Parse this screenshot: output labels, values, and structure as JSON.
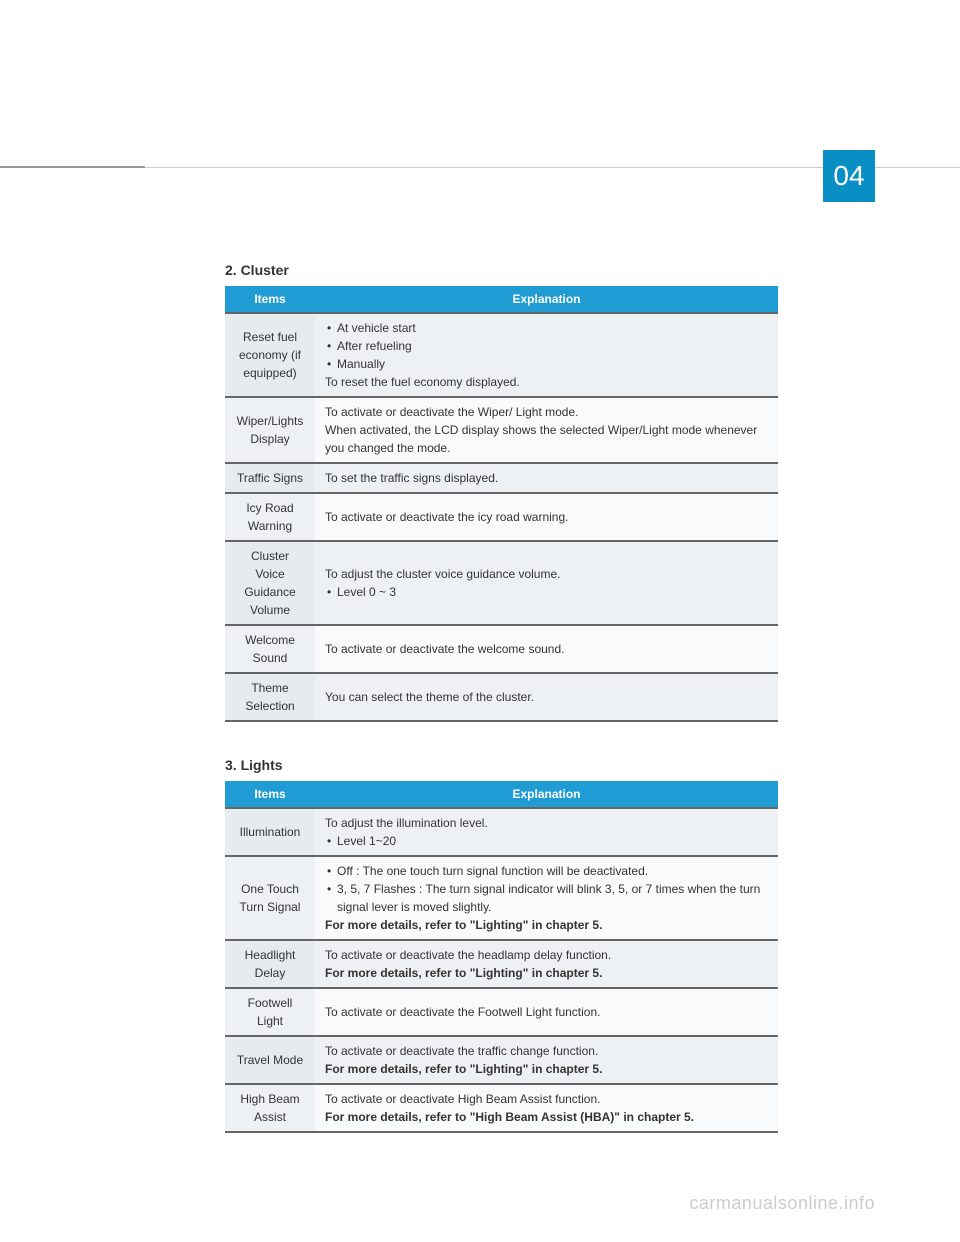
{
  "chapter_number": "04",
  "watermark": "carmanualsonline.info",
  "colors": {
    "header_bg": "#1f9cd4",
    "badge_bg": "#0a8fc5",
    "row_odd": "#edf1f4",
    "row_even": "#f8fafc",
    "item_cell": "#e5ebef",
    "border": "#666666"
  },
  "sections": [
    {
      "heading": "2. Cluster",
      "columns": [
        "Items",
        "Explanation"
      ],
      "rows": [
        {
          "item": "Reset fuel economy (if equipped)",
          "lines": [
            {
              "type": "bullet",
              "text": "At vehicle start"
            },
            {
              "type": "bullet",
              "text": "After refueling"
            },
            {
              "type": "bullet",
              "text": "Manually"
            },
            {
              "type": "plain",
              "text": "To reset the fuel economy displayed."
            }
          ]
        },
        {
          "item": "Wiper/Lights Display",
          "lines": [
            {
              "type": "plain",
              "text": "To activate or deactivate the Wiper/ Light mode."
            },
            {
              "type": "plain",
              "text": "When activated, the LCD display shows the selected Wiper/Light mode whenever you changed the mode."
            }
          ]
        },
        {
          "item": "Traffic Signs",
          "lines": [
            {
              "type": "plain",
              "text": "To set the traffic signs displayed."
            }
          ]
        },
        {
          "item": "Icy Road Warning",
          "lines": [
            {
              "type": "plain",
              "text": "To activate or deactivate the icy road warning."
            }
          ]
        },
        {
          "item": "Cluster Voice Guidance Volume",
          "lines": [
            {
              "type": "plain",
              "text": "To adjust the cluster voice guidance volume."
            },
            {
              "type": "bullet",
              "text": "Level 0 ~ 3"
            }
          ]
        },
        {
          "item": "Welcome Sound",
          "lines": [
            {
              "type": "plain",
              "text": "To activate or deactivate the welcome sound."
            }
          ]
        },
        {
          "item": "Theme Selection",
          "lines": [
            {
              "type": "plain",
              "text": "You can select the theme of the cluster."
            }
          ]
        }
      ]
    },
    {
      "heading": "3. Lights",
      "columns": [
        "Items",
        "Explanation"
      ],
      "rows": [
        {
          "item": "Illumination",
          "lines": [
            {
              "type": "plain",
              "text": "To adjust the illumination level."
            },
            {
              "type": "bullet",
              "text": "Level 1~20"
            }
          ]
        },
        {
          "item": "One Touch Turn Signal",
          "lines": [
            {
              "type": "bullet",
              "text": "Off : The one touch turn signal function will be deactivated."
            },
            {
              "type": "bullet",
              "text": "3, 5, 7 Flashes : The turn signal indicator will blink 3, 5, or 7 times when the turn signal lever is moved slightly."
            },
            {
              "type": "bold",
              "text": "For more details, refer to \"Lighting\" in chapter 5."
            }
          ]
        },
        {
          "item": "Headlight Delay",
          "lines": [
            {
              "type": "plain",
              "text": "To activate or deactivate the headlamp delay function."
            },
            {
              "type": "bold",
              "text": "For more details, refer to \"Lighting\" in chapter 5."
            }
          ]
        },
        {
          "item": "Footwell Light",
          "lines": [
            {
              "type": "plain",
              "text": "To activate or deactivate the Footwell Light function."
            }
          ]
        },
        {
          "item": "Travel Mode",
          "lines": [
            {
              "type": "plain",
              "text": "To activate or deactivate the traffic change function."
            },
            {
              "type": "bold",
              "text": "For more details, refer to \"Lighting\" in chapter 5."
            }
          ]
        },
        {
          "item": "High Beam Assist",
          "lines": [
            {
              "type": "plain",
              "text": "To activate or deactivate High Beam Assist function."
            },
            {
              "type": "bold",
              "text": "For more details, refer to \"High Beam Assist (HBA)\" in chapter 5."
            }
          ]
        }
      ]
    }
  ]
}
